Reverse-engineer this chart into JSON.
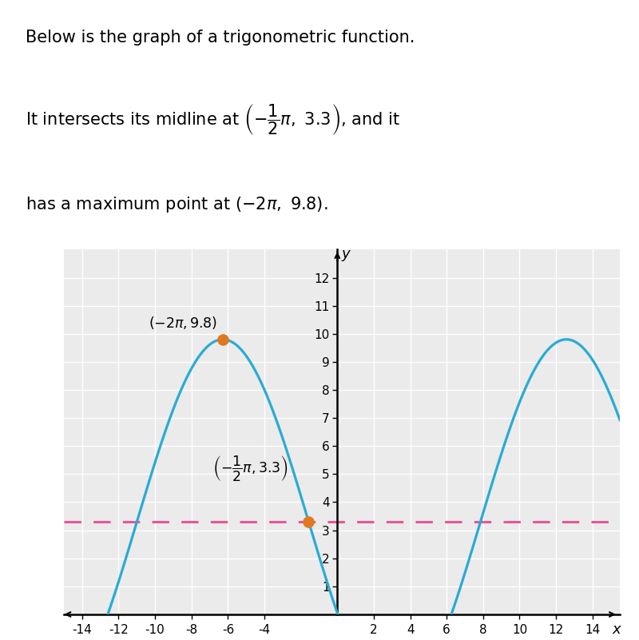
{
  "amplitude": 6.5,
  "midline": 3.3,
  "period": 18.84955592153876,
  "x_max": -6.283185307179586,
  "max_point_y": 9.8,
  "midline_cross_x": -1.5707963267948966,
  "midline_cross_y": 3.3,
  "curve_color": "#29ABD4",
  "midline_color": "#E8559A",
  "dot_color": "#E07820",
  "bg_color": "#EBEBEB",
  "grid_color": "#FFFFFF",
  "xlabel": "x",
  "ylabel": "y",
  "xlim": [
    -15.0,
    15.5
  ],
  "ylim_bottom": 0,
  "ylim_top": 13.0,
  "xticks": [
    -14,
    -12,
    -10,
    -8,
    -6,
    -4,
    2,
    4,
    6,
    8,
    10,
    12,
    14
  ],
  "yticks": [
    1,
    2,
    3,
    4,
    5,
    6,
    7,
    8,
    9,
    10,
    11,
    12
  ],
  "text_line1": "Below is the graph of a trigonometric function.",
  "text_line2_pre": "It intersects its midline at ",
  "text_line2_post": ", and it",
  "text_line3": "has a maximum point at "
}
